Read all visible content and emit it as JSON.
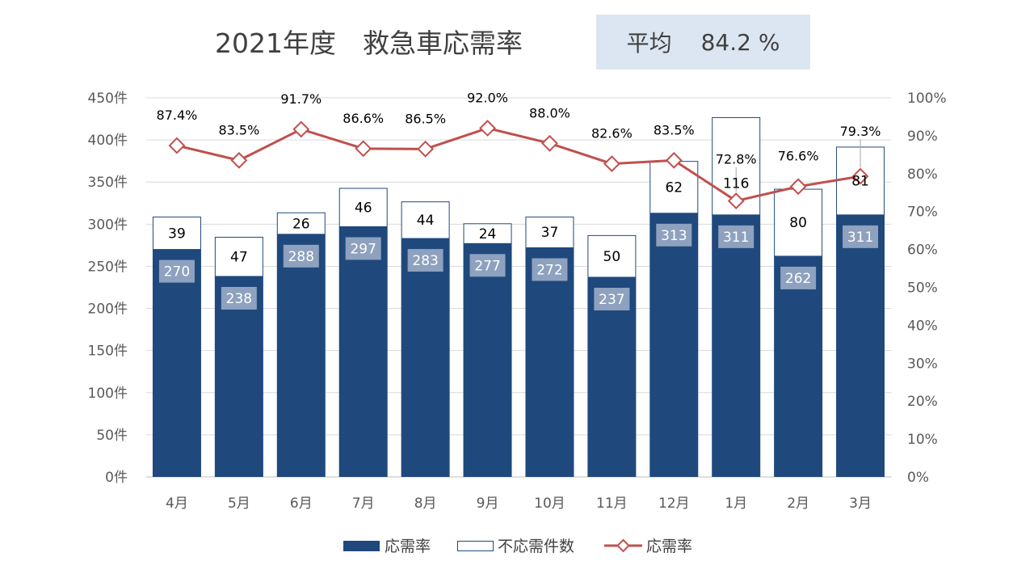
{
  "summary_box": {
    "label": "平均",
    "value": "84.2 %",
    "background": "#DCE6F2"
  },
  "chart_data": {
    "type": "bar",
    "stacked": true,
    "title": "2021年度　救急車応需率",
    "categories": [
      "4月",
      "5月",
      "6月",
      "7月",
      "8月",
      "9月",
      "10月",
      "11月",
      "12月",
      "1月",
      "2月",
      "3月"
    ],
    "series": [
      {
        "name": "応需率",
        "type": "bar",
        "axis": "left",
        "color": "#1F497D",
        "values": [
          270,
          238,
          288,
          297,
          283,
          277,
          272,
          237,
          313,
          311,
          262,
          311
        ]
      },
      {
        "name": "不応需件数",
        "type": "bar",
        "axis": "left",
        "color": "#FFFFFF",
        "outline": "#1F497D",
        "values": [
          39,
          47,
          26,
          46,
          44,
          24,
          37,
          50,
          62,
          116,
          80,
          81
        ]
      },
      {
        "name": "応需率",
        "type": "line",
        "axis": "right",
        "color": "#C0504D",
        "marker": "diamond",
        "unit": "%",
        "values": [
          87.4,
          83.5,
          91.7,
          86.6,
          86.5,
          92.0,
          88.0,
          82.6,
          83.5,
          72.8,
          76.6,
          79.3
        ]
      }
    ],
    "y_left": {
      "min": 0,
      "max": 450,
      "step": 50,
      "ticks": [
        "0件",
        "50件",
        "100件",
        "150件",
        "200件",
        "250件",
        "300件",
        "350件",
        "400件",
        "450件"
      ]
    },
    "y_right": {
      "min": 0,
      "max": 100,
      "step": 10,
      "ticks": [
        "0%",
        "10%",
        "20%",
        "30%",
        "40%",
        "50%",
        "60%",
        "70%",
        "80%",
        "90%",
        "100%"
      ]
    },
    "grid": true,
    "legend": "bottom",
    "data_label_box_color": "#8EA1BE"
  }
}
